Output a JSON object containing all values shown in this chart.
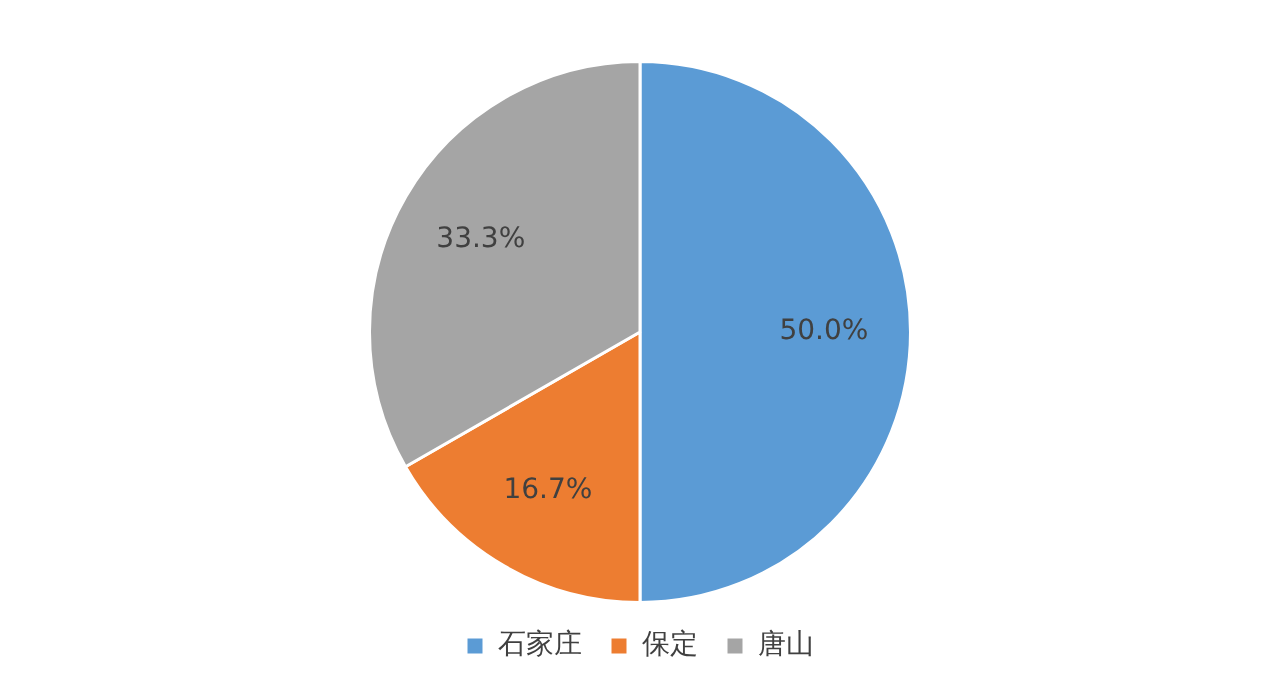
{
  "chart_data": {
    "type": "pie",
    "categories": [
      "石家庄",
      "保定",
      "唐山"
    ],
    "values": [
      50.0,
      16.7,
      33.3
    ],
    "colors": [
      "#5b9bd5",
      "#ed7d31",
      "#a5a5a5"
    ],
    "value_labels": [
      "50.0%",
      "16.7%",
      "33.3%"
    ],
    "legend": "bottom"
  }
}
